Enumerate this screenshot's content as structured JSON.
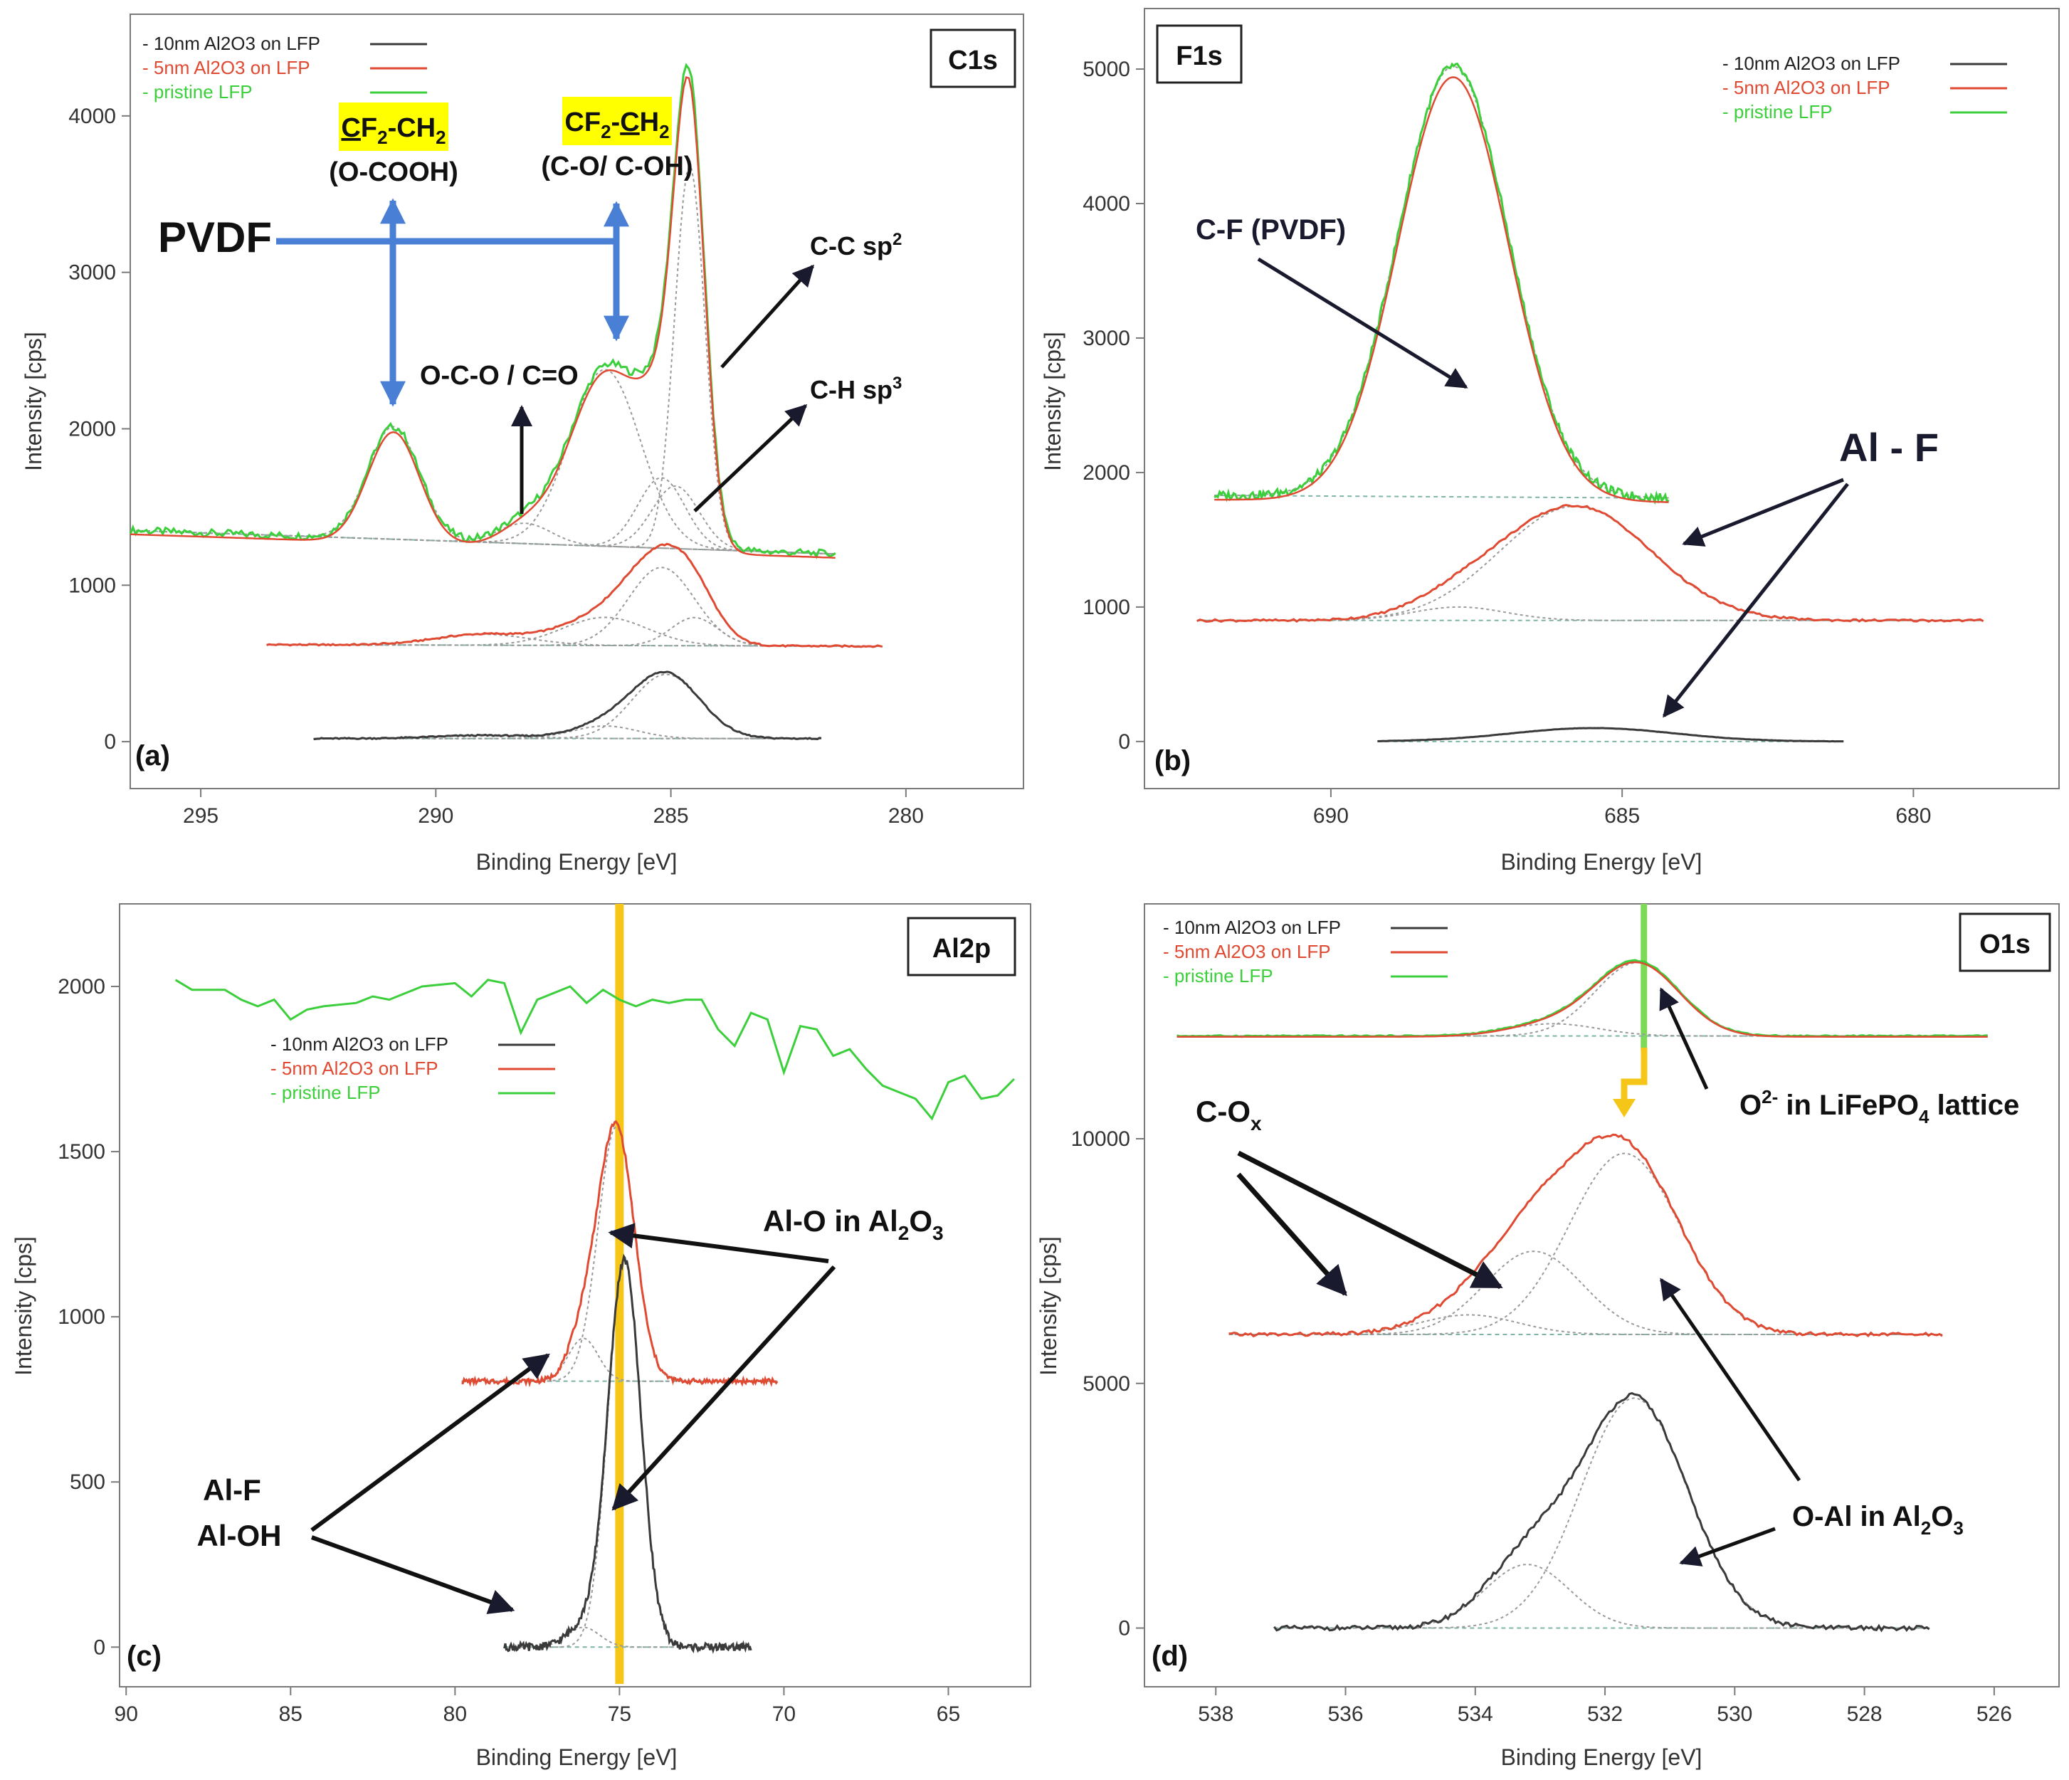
{
  "figure": {
    "legend_labels": [
      "- 10nm Al2O3 on LFP",
      "- 5nm Al2O3 on LFP",
      "- pristine LFP"
    ],
    "legend_colors": [
      "#3a3a3a",
      "#e04a32",
      "#3ccf3c"
    ],
    "fit_color": "#9a9a9a",
    "baseline_color": "#7fb4a8",
    "arrow_color": "#1a1a2e",
    "pvdf_arrow_color": "#4a7fd6",
    "marker_color": "#f5c518"
  },
  "chart_data": [
    {
      "type": "line",
      "panel_label": "(a)",
      "box_label": "C1s",
      "xlabel": "Binding Energy [eV]",
      "ylabel": "Intensity [cps]",
      "xlim": [
        296.5,
        277.5
      ],
      "ylim": [
        -300,
        4650
      ],
      "xticks": [
        295,
        290,
        285,
        280
      ],
      "yticks": [
        0,
        1000,
        2000,
        3000,
        4000
      ],
      "grid": false,
      "legend_position": "top-left",
      "series": [
        {
          "name": "pristine LFP",
          "baseline": 1350,
          "end": 1200,
          "range": [
            296.5,
            281.5
          ],
          "peaks": [
            [
              290.9,
              720,
              0.55
            ],
            [
              288.1,
              130,
              0.55
            ],
            [
              286.4,
              1130,
              0.75
            ],
            [
              285.2,
              450,
              0.5
            ],
            [
              284.6,
              2450,
              0.32
            ],
            [
              284.9,
              400,
              0.5
            ]
          ]
        },
        {
          "name": "5nm Al2O3 on LFP",
          "baseline": 620,
          "end": 610,
          "range": [
            293.6,
            280.5
          ],
          "peaks": [
            [
              289.0,
              70,
              1.0
            ],
            [
              286.4,
              180,
              0.9
            ],
            [
              285.2,
              500,
              0.7
            ],
            [
              284.5,
              180,
              0.5
            ]
          ]
        },
        {
          "name": "10nm Al2O3 on LFP",
          "baseline": 20,
          "end": 20,
          "range": [
            292.6,
            281.8
          ],
          "peaks": [
            [
              289.0,
              20,
              1.0
            ],
            [
              286.4,
              80,
              0.7
            ],
            [
              285.1,
              410,
              0.72
            ]
          ]
        }
      ],
      "annotations": {
        "pvdf": "PVDF",
        "cf2_left": "CF2-CH2",
        "cf2_left_sub": "(O-COOH)",
        "cf2_right": "CF2-CH2",
        "cf2_right_sub": "(C-O/ C-OH)",
        "oco": "O-C-O / C=O",
        "csp2": "C-C sp2",
        "chsp3": "C-H sp3"
      }
    },
    {
      "type": "line",
      "panel_label": "(b)",
      "box_label": "F1s",
      "xlabel": "Binding Energy [eV]",
      "ylabel": "Intensity [cps]",
      "xlim": [
        693.2,
        677.5
      ],
      "ylim": [
        -350,
        5450
      ],
      "xticks": [
        690,
        685,
        680
      ],
      "yticks": [
        0,
        1000,
        2000,
        3000,
        4000,
        5000
      ],
      "grid": false,
      "legend_position": "top-right",
      "series": [
        {
          "name": "pristine LFP",
          "baseline": 1830,
          "end": 1810,
          "range": [
            692.0,
            684.2
          ],
          "peaks": [
            [
              687.9,
              3200,
              0.95
            ]
          ]
        },
        {
          "name": "5nm Al2O3 on LFP",
          "baseline": 900,
          "end": 900,
          "range": [
            692.3,
            678.8
          ],
          "peaks": [
            [
              685.8,
              850,
              1.3
            ],
            [
              687.8,
              100,
              0.8
            ]
          ]
        },
        {
          "name": "10nm Al2O3 on LFP",
          "baseline": 0,
          "end": 0,
          "range": [
            689.2,
            681.2
          ],
          "peaks": [
            [
              685.5,
              100,
              1.4
            ]
          ]
        }
      ],
      "annotations": {
        "cf": "C-F  (PVDF)",
        "alf": "Al - F"
      }
    },
    {
      "type": "line",
      "panel_label": "(c)",
      "box_label": "Al2p",
      "xlabel": "Binding Energy [eV]",
      "ylabel": "Intensity [cps]",
      "xlim": [
        90.2,
        62.5
      ],
      "ylim": [
        -120,
        2250
      ],
      "xticks": [
        90,
        85,
        80,
        75,
        70,
        65
      ],
      "yticks": [
        0,
        500,
        1000,
        1500,
        2000
      ],
      "grid": false,
      "legend_position": "center",
      "marker_x": 75.0,
      "series": [
        {
          "name": "pristine LFP",
          "x": [
            88.5,
            88.0,
            87.0,
            86.5,
            86.0,
            85.5,
            85.0,
            84.5,
            84.0,
            83.0,
            82.5,
            82.0,
            81.0,
            80.0,
            79.5,
            79.0,
            78.5,
            78.0,
            77.5,
            77.0,
            76.5,
            76.0,
            75.5,
            75.0,
            74.5,
            74.0,
            73.5,
            73.0,
            72.5,
            72.0,
            71.5,
            71.0,
            70.5,
            70.0,
            69.5,
            69.0,
            68.5,
            68.0,
            67.5,
            67.0,
            66.5,
            66.0,
            65.5,
            65.0,
            64.5,
            64.0,
            63.5,
            63.0
          ],
          "y": [
            2020,
            1990,
            1990,
            1960,
            1940,
            1960,
            1900,
            1930,
            1940,
            1950,
            1970,
            1960,
            2000,
            2010,
            1970,
            2020,
            2010,
            1860,
            1960,
            1980,
            2000,
            1950,
            1990,
            1960,
            1940,
            1960,
            1950,
            1960,
            1960,
            1870,
            1820,
            1920,
            1900,
            1740,
            1880,
            1870,
            1790,
            1810,
            1750,
            1700,
            1680,
            1660,
            1600,
            1710,
            1730,
            1660,
            1670,
            1720
          ]
        },
        {
          "name": "5nm Al2O3 on LFP",
          "baseline": 805,
          "end": 805,
          "range": [
            79.8,
            70.2
          ],
          "peaks": [
            [
              75.1,
              770,
              0.55
            ],
            [
              76.1,
              130,
              0.45
            ]
          ]
        },
        {
          "name": "10nm Al2O3 on LFP",
          "baseline": 0,
          "end": 0,
          "range": [
            78.5,
            71.0
          ],
          "peaks": [
            [
              74.85,
              1170,
              0.5
            ],
            [
              76.1,
              60,
              0.5
            ]
          ]
        }
      ],
      "annotations": {
        "alo": "Al-O in Al2O3",
        "alf": "Al-F",
        "aloh": "Al-OH"
      }
    },
    {
      "type": "line",
      "panel_label": "(d)",
      "box_label": "O1s",
      "xlabel": "Binding Energy [eV]",
      "ylabel": "Intensity [cps]",
      "xlim": [
        539.1,
        525.0
      ],
      "ylim": [
        -1200,
        14800
      ],
      "xticks": [
        538,
        536,
        534,
        532,
        530,
        528,
        526
      ],
      "yticks": [
        0,
        5000,
        10000
      ],
      "grid": false,
      "legend_position": "top-left",
      "marker_x": 531.4,
      "series": [
        {
          "name": "pristine LFP",
          "baseline": 12100,
          "end": 12100,
          "range": [
            538.6,
            526.1
          ],
          "peaks": [
            [
              531.5,
              1500,
              0.65
            ],
            [
              532.8,
              250,
              0.7
            ]
          ]
        },
        {
          "name": "5nm Al2O3 on LFP",
          "baseline": 6000,
          "end": 6000,
          "range": [
            537.8,
            526.8
          ],
          "peaks": [
            [
              531.7,
              3700,
              0.85
            ],
            [
              533.1,
              1700,
              0.75
            ],
            [
              534.1,
              400,
              0.75
            ]
          ]
        },
        {
          "name": "10nm Al2O3 on LFP",
          "baseline": 0,
          "end": 0,
          "range": [
            537.1,
            527.0
          ],
          "peaks": [
            [
              531.55,
              4700,
              0.82
            ],
            [
              533.2,
              1300,
              0.65
            ]
          ]
        }
      ],
      "annotations": {
        "cox": "C-Ox",
        "o2": "O2- in  LiFePO4 lattice",
        "oal": "O-Al in Al2O3"
      }
    }
  ]
}
